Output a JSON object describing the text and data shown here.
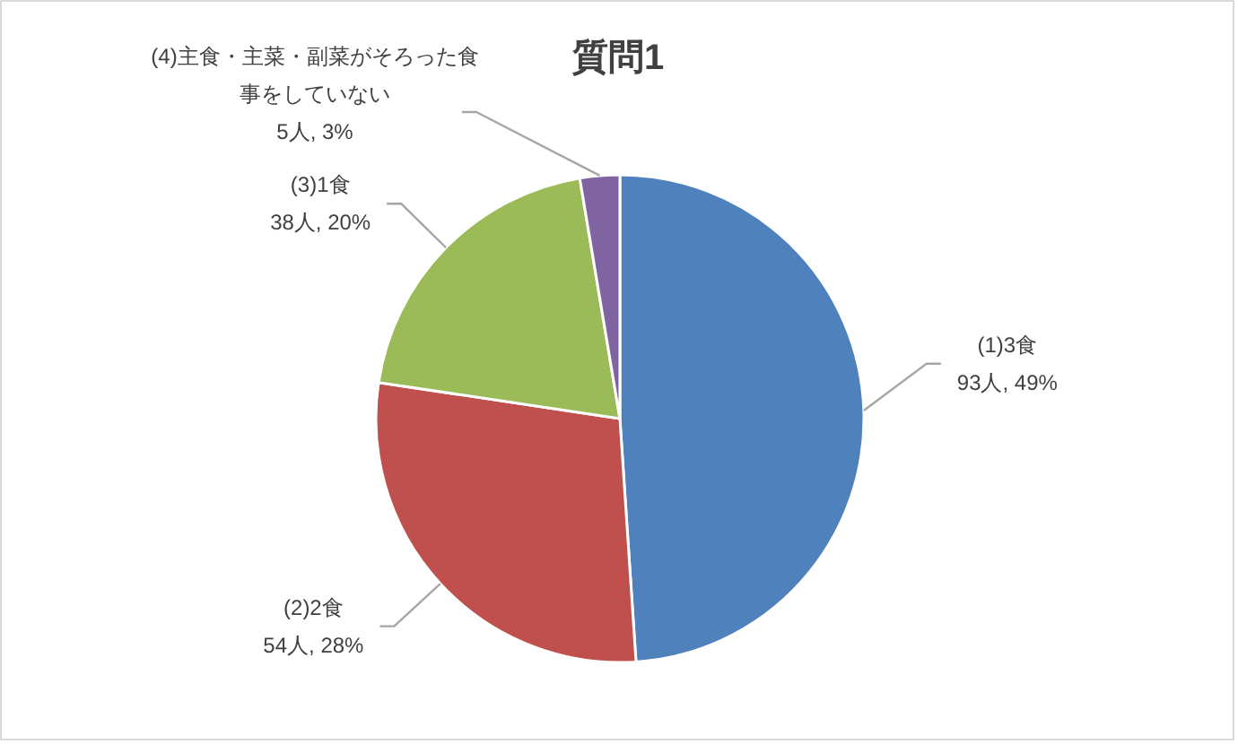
{
  "chart_data": {
    "type": "pie",
    "title": "質問1",
    "categories": [
      "(1)3食",
      "(2)2食",
      "(3)1食",
      "(4)主食・主菜・副菜がそろった食事をしていない"
    ],
    "values": [
      93,
      54,
      38,
      5
    ],
    "colors": [
      "#4f81bd",
      "#c0504d",
      "#9bbb59",
      "#8064a2"
    ],
    "value_labels": [
      "93人, 49%",
      "54人, 28%",
      "38人, 20%",
      "5人, 3%"
    ]
  }
}
